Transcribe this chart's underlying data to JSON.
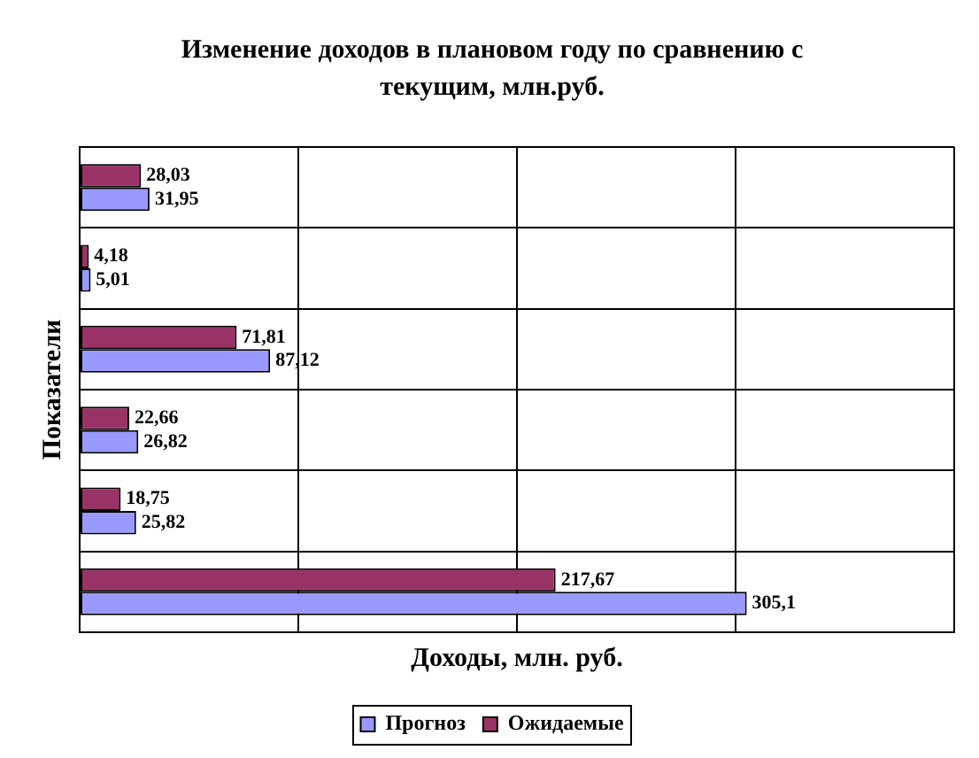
{
  "chart_data": {
    "type": "bar",
    "orientation": "horizontal",
    "title": "Изменение доходов в плановом году по сравнению с текущим, млн.руб.",
    "xlabel": "Доходы, млн. руб.",
    "ylabel": "Показатели",
    "categories": [
      null,
      null,
      null,
      null,
      null,
      null
    ],
    "series": [
      {
        "name": "Прогноз",
        "color": "#9999ff",
        "values": [
          31.95,
          5.01,
          87.12,
          26.82,
          25.82,
          305.1
        ],
        "value_labels": [
          "31,95",
          "5,01",
          "87,12",
          "26,82",
          "25,82",
          "305,1"
        ]
      },
      {
        "name": "Ожидаемые",
        "color": "#993366",
        "values": [
          28.03,
          4.18,
          71.81,
          22.66,
          18.75,
          217.67
        ],
        "value_labels": [
          "28,03",
          "4,18",
          "71,81",
          "22,66",
          "18,75",
          "217,67"
        ]
      }
    ],
    "xlim": [
      0,
      400
    ],
    "xticks": [
      {
        "value": 0,
        "label": null
      },
      {
        "value": 100,
        "label": null
      },
      {
        "value": 200,
        "label": null
      },
      {
        "value": 300,
        "label": null
      },
      {
        "value": 400,
        "label": null
      }
    ],
    "grid": true,
    "legend": "bottom",
    "tick_labels": false
  }
}
